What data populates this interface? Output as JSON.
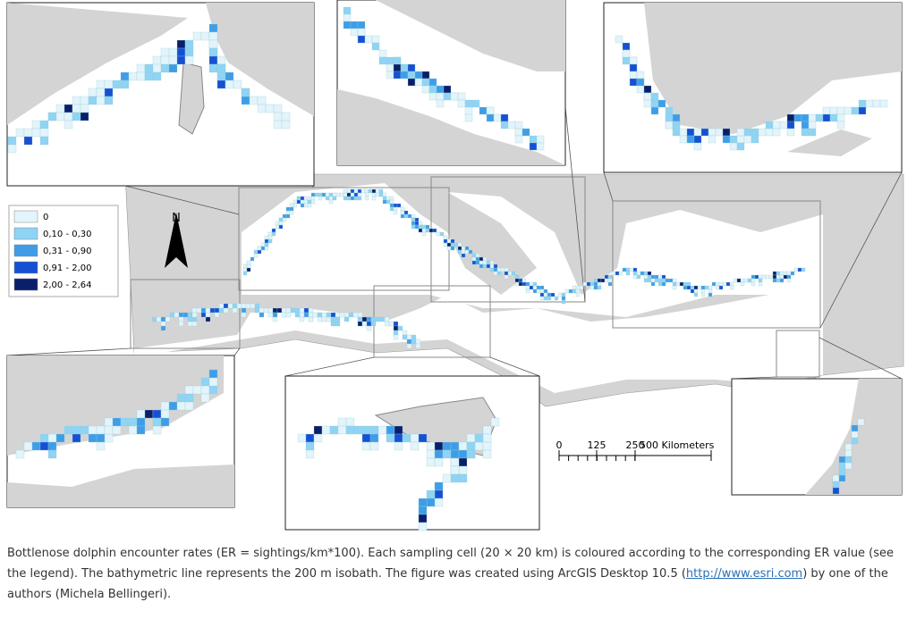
{
  "legend": {
    "items": [
      {
        "label": "0",
        "color": "#e3f4fc"
      },
      {
        "label": "0,10 - 0,30",
        "color": "#8fd3f5"
      },
      {
        "label": "0,31 - 0,90",
        "color": "#3f9de8"
      },
      {
        "label": "0,91 - 2,00",
        "color": "#1550d4"
      },
      {
        "label": "2,00 - 2,64",
        "color": "#0a1f6b"
      }
    ]
  },
  "north": "N",
  "scale": {
    "labels": [
      "0",
      "125",
      "250",
      "500 Kilometers"
    ]
  },
  "caption": {
    "before": "Bottlenose dolphin encounter rates (ER = sightings/km*100). Each sampling cell (20 × 20 km) is coloured according to the corresponding ER value (see the legend). The bathymetric line represents the 200 m isobath. The figure was created using ArcGIS Desktop 10.5 (",
    "link": "http://www.esri.com",
    "after": ") by one of the authors (Michela Bellingeri)."
  }
}
